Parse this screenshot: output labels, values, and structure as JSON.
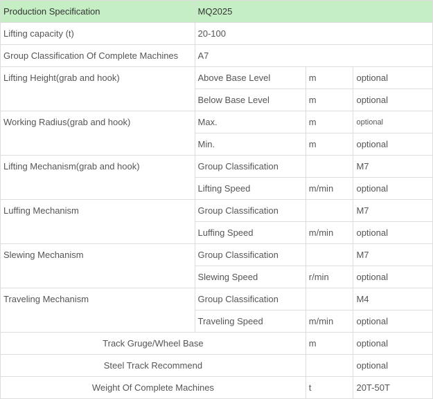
{
  "colors": {
    "header_bg": "#c5eec5",
    "border": "#dddddd",
    "text": "#555555",
    "header_text": "#333333",
    "background": "#ffffff"
  },
  "typography": {
    "font_family": "Arial, sans-serif",
    "font_size_pt": 10,
    "small_font_size_pt": 8
  },
  "columns": {
    "label_width": 245,
    "sub_width": 140,
    "unit_width": 60,
    "val_width": 100
  },
  "header": {
    "label": "Production Specification",
    "value": "MQ2025"
  },
  "rows": [
    {
      "type": "simple",
      "label": "Lifting capacity (t)",
      "value": "20-100"
    },
    {
      "type": "simple",
      "label": "Group Classification Of Complete Machines",
      "value": "A7"
    },
    {
      "type": "group",
      "label": "Lifting Height(grab and hook)",
      "subrows": [
        {
          "sub": "Above Base Level",
          "unit": "m",
          "val": "optional"
        },
        {
          "sub": "Below Base Level",
          "unit": "m",
          "val": "optional"
        }
      ]
    },
    {
      "type": "group",
      "label": "Working Radius(grab and hook)",
      "subrows": [
        {
          "sub": "Max.",
          "unit": "m",
          "val": "optional",
          "val_small": true
        },
        {
          "sub": "Min.",
          "unit": "m",
          "val": "optional"
        }
      ]
    },
    {
      "type": "group",
      "label": "Lifting Mechanism(grab and hook)",
      "subrows": [
        {
          "sub": "Group Classification",
          "unit": "",
          "val": "M7"
        },
        {
          "sub": "Lifting Speed",
          "unit": "m/min",
          "val": "optional"
        }
      ]
    },
    {
      "type": "group",
      "label": "Luffing Mechanism",
      "subrows": [
        {
          "sub": "Group Classification",
          "unit": "",
          "val": "M7"
        },
        {
          "sub": "Luffing Speed",
          "unit": "m/min",
          "val": "optional"
        }
      ]
    },
    {
      "type": "group",
      "label": "Slewing Mechanism",
      "subrows": [
        {
          "sub": "Group Classification",
          "unit": "",
          "val": "M7"
        },
        {
          "sub": "Slewing Speed",
          "unit": "r/min",
          "val": "optional"
        }
      ]
    },
    {
      "type": "group",
      "label": "Traveling Mechanism",
      "subrows": [
        {
          "sub": "Group Classification",
          "unit": "",
          "val": "M4"
        },
        {
          "sub": "Traveling Speed",
          "unit": "m/min",
          "val": "optional"
        }
      ]
    },
    {
      "type": "threecol",
      "label": "Track Gruge/Wheel Base",
      "unit": "m",
      "val": "optional"
    },
    {
      "type": "threecol",
      "label": "Steel Track Recommend",
      "unit": "",
      "val": "optional"
    },
    {
      "type": "threecol",
      "label": "Weight Of Complete Machines",
      "unit": "t",
      "val": "20T-50T"
    }
  ]
}
